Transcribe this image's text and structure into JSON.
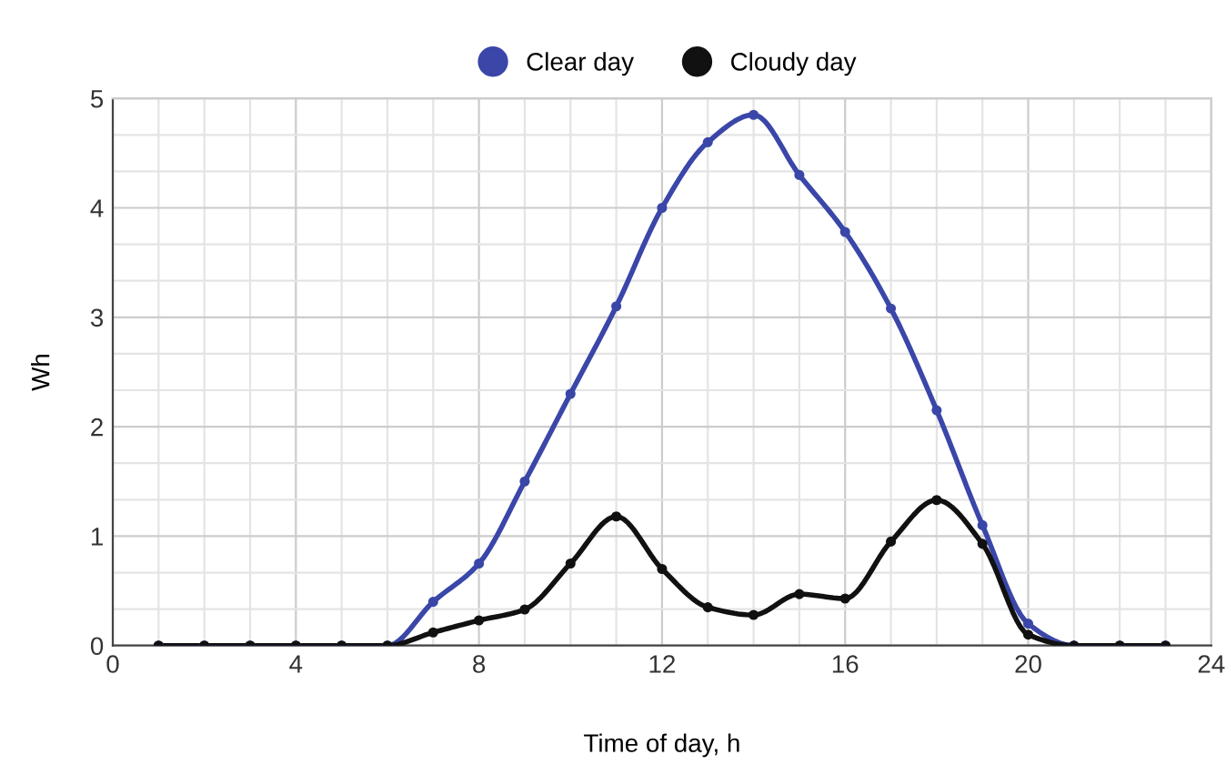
{
  "chart_data": {
    "type": "line",
    "xlabel": "Time of day, h",
    "ylabel": "Wh",
    "x": [
      1,
      2,
      3,
      4,
      5,
      6,
      7,
      8,
      9,
      10,
      11,
      12,
      13,
      14,
      15,
      16,
      17,
      18,
      19,
      20,
      21,
      22,
      23
    ],
    "series": [
      {
        "name": "Clear day",
        "color": "#3a46a8",
        "values": [
          0,
          0,
          0,
          0,
          0,
          0,
          0.4,
          0.75,
          1.5,
          2.3,
          3.1,
          4.0,
          4.6,
          4.85,
          4.3,
          3.78,
          3.08,
          2.15,
          1.1,
          0.2,
          0,
          0,
          0
        ]
      },
      {
        "name": "Cloudy day",
        "color": "#111111",
        "values": [
          0,
          0,
          0,
          0,
          0,
          0,
          0.12,
          0.23,
          0.33,
          0.75,
          1.18,
          0.7,
          0.35,
          0.28,
          0.47,
          0.43,
          0.95,
          1.33,
          0.93,
          0.1,
          0,
          0,
          0
        ]
      }
    ],
    "xlim": [
      0,
      24
    ],
    "xticks": [
      0,
      4,
      8,
      12,
      16,
      20,
      24
    ],
    "ylim": [
      0,
      5
    ],
    "yticks": [
      0,
      1,
      2,
      3,
      4,
      5
    ],
    "grid": true,
    "legend": "top",
    "marker": "circle",
    "line_style": "solid"
  }
}
